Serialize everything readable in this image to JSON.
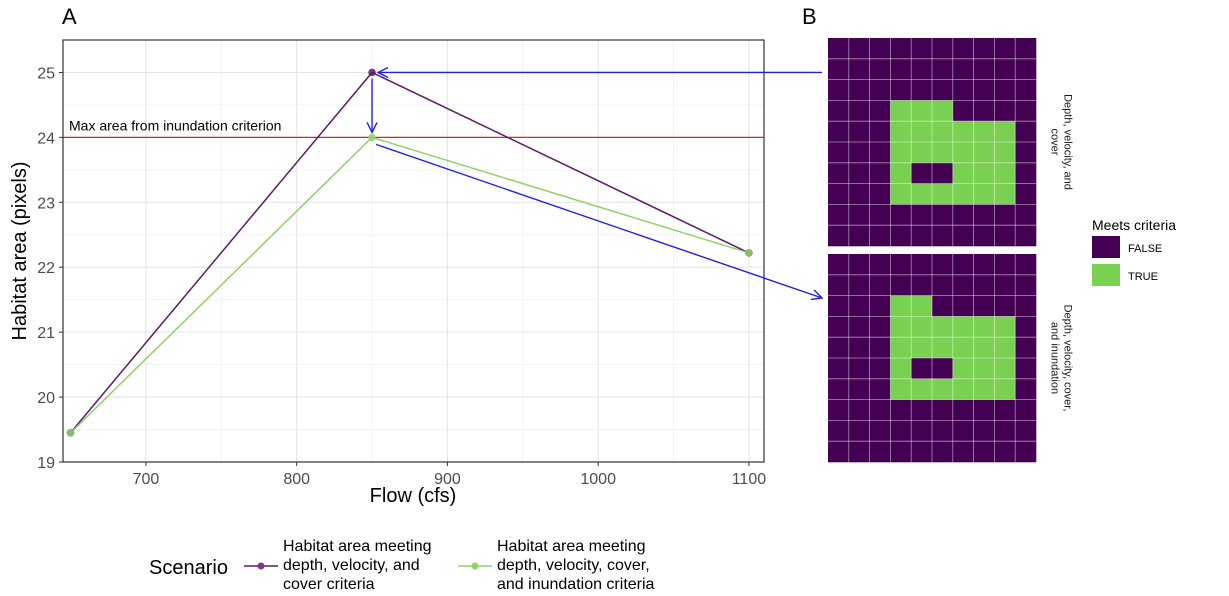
{
  "chart_data": [
    {
      "panel": "A",
      "type": "line",
      "title": "",
      "xlabel": "Flow (cfs)",
      "ylabel": "Habitat area (pixels)",
      "xlim": [
        645,
        1110
      ],
      "ylim": [
        19,
        25.5
      ],
      "x_ticks": [
        700,
        800,
        900,
        1000,
        1100
      ],
      "y_ticks": [
        19,
        20,
        21,
        22,
        23,
        24,
        25
      ],
      "grid": true,
      "legend_placement": "bottom",
      "legend_title": "Scenario",
      "series": [
        {
          "name": "Habitat area meeting depth, velocity, and cover criteria",
          "name_lines": [
            "Habitat area meeting",
            "depth, velocity, and",
            "cover criteria"
          ],
          "color": "#5b1c6a",
          "x": [
            650,
            850,
            1100
          ],
          "y": [
            19.45,
            25.0,
            22.22
          ]
        },
        {
          "name": "Habitat area meeting depth, velocity, cover, and inundation criteria",
          "name_lines": [
            "Habitat area meeting",
            "depth, velocity, cover,",
            "and inundation criteria"
          ],
          "color": "#8fd16b",
          "x": [
            650,
            850,
            1100
          ],
          "y": [
            19.45,
            24.0,
            22.22
          ]
        }
      ],
      "reference_line": {
        "y": 24,
        "color": "#e8231f",
        "label": "Max area from inundation criterion"
      },
      "arrow_color": "#1f1fe8"
    },
    {
      "panel": "B",
      "type": "heatmap",
      "legend_title": "Meets criteria",
      "legend": [
        {
          "label": "FALSE",
          "color": "#440154"
        },
        {
          "label": "TRUE",
          "color": "#7ad151"
        }
      ],
      "facets": [
        {
          "label_lines": [
            "Depth, velocity, and",
            "cover"
          ],
          "true_cells": [
            [
              3,
              3
            ],
            [
              3,
              4
            ],
            [
              3,
              5
            ],
            [
              4,
              3
            ],
            [
              4,
              4
            ],
            [
              4,
              5
            ],
            [
              4,
              6
            ],
            [
              4,
              7
            ],
            [
              4,
              8
            ],
            [
              5,
              3
            ],
            [
              5,
              4
            ],
            [
              5,
              5
            ],
            [
              5,
              6
            ],
            [
              5,
              7
            ],
            [
              5,
              8
            ],
            [
              6,
              3
            ],
            [
              6,
              6
            ],
            [
              6,
              7
            ],
            [
              6,
              8
            ],
            [
              7,
              3
            ],
            [
              7,
              4
            ],
            [
              7,
              5
            ],
            [
              7,
              6
            ],
            [
              7,
              7
            ],
            [
              7,
              8
            ]
          ]
        },
        {
          "label_lines": [
            "Depth, velocity, cover,",
            "and inundation"
          ],
          "true_cells": [
            [
              2,
              3
            ],
            [
              2,
              4
            ],
            [
              3,
              3
            ],
            [
              3,
              4
            ],
            [
              3,
              5
            ],
            [
              3,
              6
            ],
            [
              3,
              7
            ],
            [
              3,
              8
            ],
            [
              4,
              3
            ],
            [
              4,
              4
            ],
            [
              4,
              5
            ],
            [
              4,
              6
            ],
            [
              4,
              7
            ],
            [
              4,
              8
            ],
            [
              5,
              3
            ],
            [
              5,
              6
            ],
            [
              5,
              7
            ],
            [
              5,
              8
            ],
            [
              6,
              3
            ],
            [
              6,
              4
            ],
            [
              6,
              5
            ],
            [
              6,
              6
            ],
            [
              6,
              7
            ],
            [
              6,
              8
            ]
          ]
        }
      ],
      "grid_size": [
        10,
        10
      ]
    }
  ],
  "panel_labels": {
    "a": "A",
    "b": "B"
  }
}
